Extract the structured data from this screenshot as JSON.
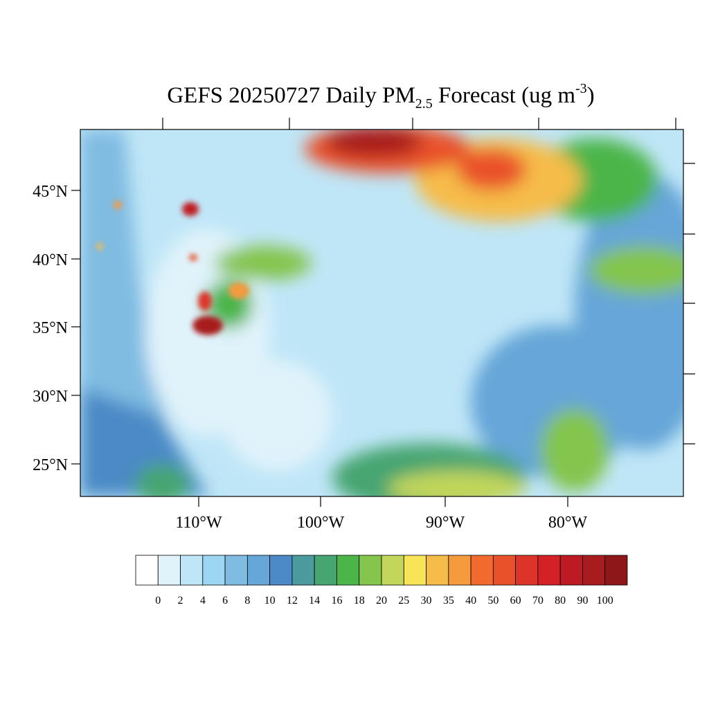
{
  "title": {
    "main": "GEFS 20250727 Daily PM",
    "subscript": "2.5",
    "rest": " Forecast (ug m",
    "superscript": "-3",
    "end": ")"
  },
  "lat_labels": [
    "45°N",
    "40°N",
    "35°N",
    "30°N",
    "25°N"
  ],
  "lon_labels": [
    "110°W",
    "100°W",
    "90°W",
    "80°W"
  ],
  "colorbar": {
    "levels": [
      0,
      2,
      4,
      6,
      8,
      10,
      12,
      14,
      16,
      18,
      20,
      25,
      30,
      35,
      40,
      50,
      60,
      70,
      80,
      90,
      100
    ],
    "colors": [
      "#ffffff",
      "#e0f3fb",
      "#bfe6f7",
      "#9dd6f2",
      "#80bbe2",
      "#66a6d8",
      "#4b8ac6",
      "#4a9a9e",
      "#47a571",
      "#4bb54a",
      "#84c54d",
      "#c1d65a",
      "#f7e457",
      "#f6bc4a",
      "#f59a3d",
      "#f26a2e",
      "#e9512b",
      "#dd3429",
      "#d42027",
      "#be1a24",
      "#a81b1f",
      "#8e171a"
    ]
  }
}
